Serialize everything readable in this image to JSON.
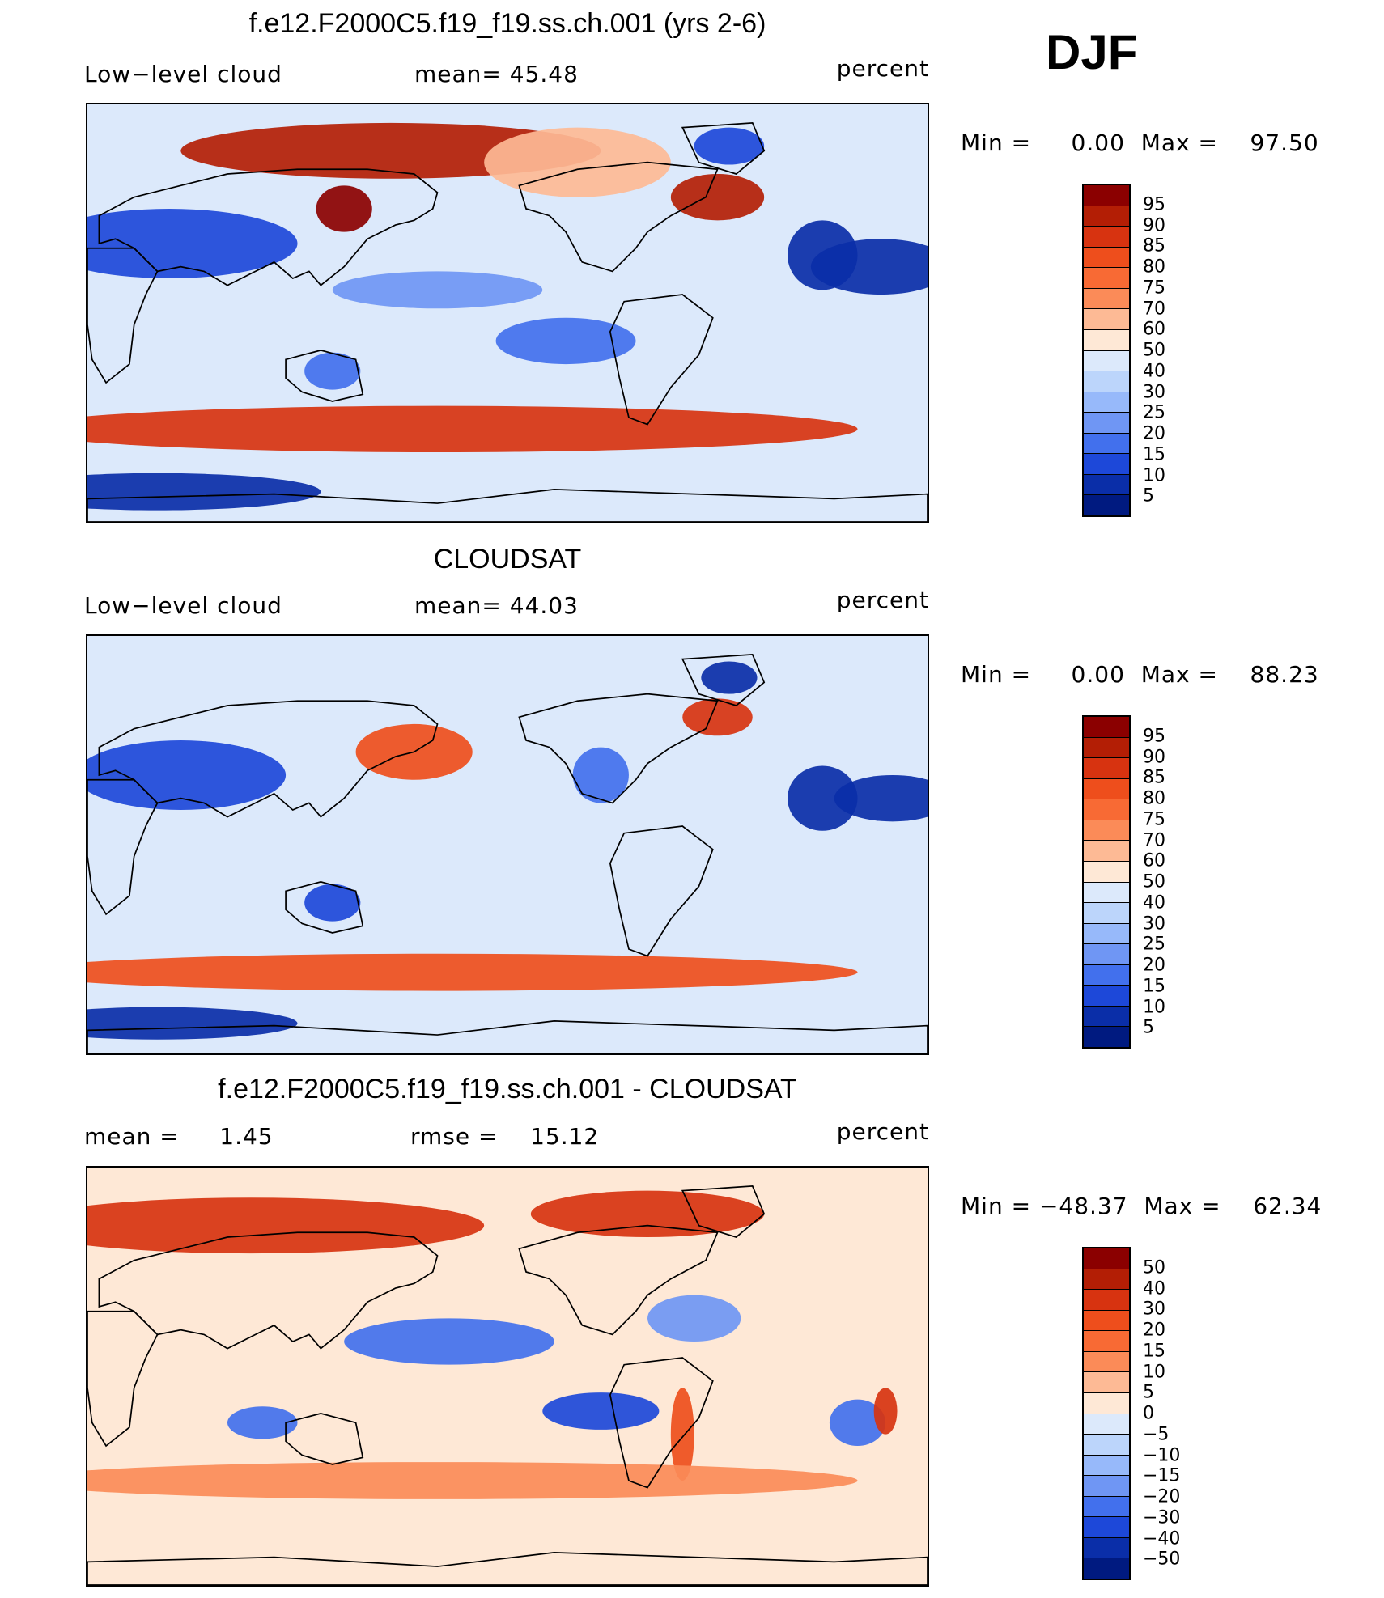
{
  "season": "DJF",
  "panels": [
    {
      "title": "f.e12.F2000C5.f19_f19.ss.ch.001 (yrs 2-6)",
      "left_label": "Low−level cloud",
      "mid_label": "mean=  45.48",
      "units": "percent",
      "minmax": "Min =     0.00  Max =    97.50",
      "legend_levels": [
        "95",
        "90",
        "85",
        "80",
        "75",
        "70",
        "60",
        "50",
        "40",
        "30",
        "25",
        "20",
        "15",
        "10",
        "5"
      ],
      "legend_colors": [
        "#8b0000",
        "#b31e05",
        "#d73310",
        "#ee4e1c",
        "#f86a34",
        "#fb8b58",
        "#fdba95",
        "#fee8d6",
        "#dce9fb",
        "#bcd5fb",
        "#97b9fa",
        "#6f96f4",
        "#4270ed",
        "#1d48d9",
        "#0a2ea8",
        "#001a80"
      ],
      "clusters": [
        {
          "lon": 65,
          "lat": 30,
          "rx": 55,
          "ry": 15,
          "value": 10
        },
        {
          "lon": 10,
          "lat": 20,
          "rx": 30,
          "ry": 12,
          "value": 5
        },
        {
          "lon": 180,
          "lat": 10,
          "rx": 45,
          "ry": 8,
          "value": 20
        },
        {
          "lon": 235,
          "lat": -12,
          "rx": 30,
          "ry": 10,
          "value": 15
        },
        {
          "lon": 345,
          "lat": 25,
          "rx": 15,
          "ry": 15,
          "value": 5
        },
        {
          "lon": 60,
          "lat": -77,
          "rx": 70,
          "ry": 8,
          "value": 5
        },
        {
          "lon": 160,
          "lat": 70,
          "rx": 90,
          "ry": 12,
          "value": 90
        },
        {
          "lon": 140,
          "lat": 45,
          "rx": 12,
          "ry": 10,
          "value": 95
        },
        {
          "lon": 300,
          "lat": 50,
          "rx": 20,
          "ry": 10,
          "value": 90
        },
        {
          "lon": 180,
          "lat": -50,
          "rx": 180,
          "ry": 10,
          "value": 88
        },
        {
          "lon": 240,
          "lat": 65,
          "rx": 40,
          "ry": 15,
          "value": 65
        },
        {
          "lon": 135,
          "lat": -25,
          "rx": 12,
          "ry": 8,
          "value": 15
        },
        {
          "lon": 305,
          "lat": 72,
          "rx": 15,
          "ry": 8,
          "value": 10
        }
      ],
      "stats": {
        "mean": 45.48,
        "min": 0.0,
        "max": 97.5
      }
    },
    {
      "title": "CLOUDSAT",
      "left_label": "Low−level cloud",
      "mid_label": "mean=  44.03",
      "units": "percent",
      "minmax": "Min =     0.00  Max =    88.23",
      "legend_levels": [
        "95",
        "90",
        "85",
        "80",
        "75",
        "70",
        "60",
        "50",
        "40",
        "30",
        "25",
        "20",
        "15",
        "10",
        "5"
      ],
      "legend_colors": [
        "#8b0000",
        "#b31e05",
        "#d73310",
        "#ee4e1c",
        "#f86a34",
        "#fb8b58",
        "#fdba95",
        "#fee8d6",
        "#dce9fb",
        "#bcd5fb",
        "#97b9fa",
        "#6f96f4",
        "#4270ed",
        "#1d48d9",
        "#0a2ea8",
        "#001a80"
      ],
      "clusters": [
        {
          "lon": 70,
          "lat": 30,
          "rx": 45,
          "ry": 15,
          "value": 10
        },
        {
          "lon": 15,
          "lat": 20,
          "rx": 25,
          "ry": 10,
          "value": 5
        },
        {
          "lon": 170,
          "lat": 40,
          "rx": 25,
          "ry": 12,
          "value": 80
        },
        {
          "lon": 300,
          "lat": 55,
          "rx": 15,
          "ry": 8,
          "value": 85
        },
        {
          "lon": 135,
          "lat": -25,
          "rx": 12,
          "ry": 8,
          "value": 10
        },
        {
          "lon": 305,
          "lat": 72,
          "rx": 12,
          "ry": 7,
          "value": 5
        },
        {
          "lon": 250,
          "lat": 30,
          "rx": 12,
          "ry": 12,
          "value": 15
        },
        {
          "lon": 180,
          "lat": -55,
          "rx": 180,
          "ry": 8,
          "value": 80
        },
        {
          "lon": 60,
          "lat": -77,
          "rx": 60,
          "ry": 7,
          "value": 5
        },
        {
          "lon": 345,
          "lat": 20,
          "rx": 15,
          "ry": 14,
          "value": 5
        }
      ],
      "stats": {
        "mean": 44.03,
        "min": 0.0,
        "max": 88.23
      }
    },
    {
      "title": "f.e12.F2000C5.f19_f19.ss.ch.001 - CLOUDSAT",
      "left_label": "mean =     1.45",
      "mid_label": "rmse =    15.12",
      "units": "percent",
      "minmax": "Min = −48.37  Max =    62.34",
      "legend_levels": [
        "50",
        "40",
        "30",
        "20",
        "15",
        "10",
        "5",
        "0",
        "−5",
        "−10",
        "−15",
        "−20",
        "−30",
        "−40",
        "−50"
      ],
      "legend_colors": [
        "#8b0000",
        "#b31e05",
        "#d73310",
        "#ee4e1c",
        "#f86a34",
        "#fb8b58",
        "#fdba95",
        "#fee8d6",
        "#dce9fb",
        "#bcd5fb",
        "#97b9fa",
        "#6f96f4",
        "#4270ed",
        "#1d48d9",
        "#0a2ea8",
        "#001a80"
      ],
      "clusters": [
        {
          "lon": 100,
          "lat": 65,
          "rx": 100,
          "ry": 12,
          "value": 30
        },
        {
          "lon": 270,
          "lat": 70,
          "rx": 50,
          "ry": 10,
          "value": 35
        },
        {
          "lon": 185,
          "lat": 15,
          "rx": 45,
          "ry": 10,
          "value": -25
        },
        {
          "lon": 250,
          "lat": -15,
          "rx": 25,
          "ry": 8,
          "value": -35
        },
        {
          "lon": 105,
          "lat": -20,
          "rx": 15,
          "ry": 7,
          "value": -25
        },
        {
          "lon": 360,
          "lat": -20,
          "rx": 12,
          "ry": 10,
          "value": -30
        },
        {
          "lon": 285,
          "lat": -25,
          "rx": 5,
          "ry": 20,
          "value": 25
        },
        {
          "lon": 180,
          "lat": -45,
          "rx": 180,
          "ry": 8,
          "value": 12
        },
        {
          "lon": 12,
          "lat": -15,
          "rx": 5,
          "ry": 10,
          "value": 30
        },
        {
          "lon": 290,
          "lat": 25,
          "rx": 20,
          "ry": 10,
          "value": -20
        }
      ],
      "stats": {
        "mean": 1.45,
        "rmse": 15.12,
        "min": -48.37,
        "max": 62.34
      }
    }
  ]
}
